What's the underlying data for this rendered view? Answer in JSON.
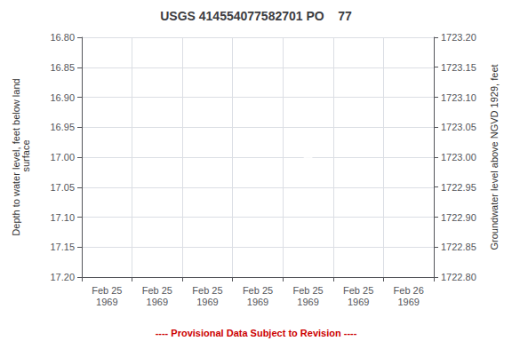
{
  "chart_data": {
    "type": "scatter",
    "title": "USGS 414554077582701 PO    77",
    "categories": [
      "Feb 25\n1969",
      "Feb 25\n1969",
      "Feb 25\n1969",
      "Feb 25\n1969",
      "Feb 25\n1969",
      "Feb 25\n1969",
      "Feb 26\n1969"
    ],
    "values": [
      null,
      null,
      null,
      null,
      17.0,
      null,
      null
    ],
    "color": "#0000cc",
    "marker": "open_circle",
    "ylabel": "Depth to water level, feet below land\n surface",
    "ylim": [
      17.2,
      16.8
    ],
    "yticks": [
      {
        "value": 16.8,
        "label": "16.80"
      },
      {
        "value": 16.85,
        "label": "16.85"
      },
      {
        "value": 16.9,
        "label": "16.90"
      },
      {
        "value": 16.95,
        "label": "16.95"
      },
      {
        "value": 17.0,
        "label": "17.00"
      },
      {
        "value": 17.05,
        "label": "17.05"
      },
      {
        "value": 17.1,
        "label": "17.10"
      },
      {
        "value": 17.15,
        "label": "17.15"
      },
      {
        "value": 17.2,
        "label": "17.20"
      }
    ],
    "y2label": "Groundwater level above NGVD 1929, feet",
    "y2lim": [
      1722.8,
      1723.2
    ],
    "y2ticks": [
      {
        "value": 1723.2,
        "label": "1723.20"
      },
      {
        "value": 1723.15,
        "label": "1723.15"
      },
      {
        "value": 1723.1,
        "label": "1723.10"
      },
      {
        "value": 1723.05,
        "label": "1723.05"
      },
      {
        "value": 1723.0,
        "label": "1723.00"
      },
      {
        "value": 1722.95,
        "label": "1722.95"
      },
      {
        "value": 1722.9,
        "label": "1722.90"
      },
      {
        "value": 1722.85,
        "label": "1722.85"
      },
      {
        "value": 1722.8,
        "label": "1722.80"
      }
    ],
    "grid": true,
    "annotations": [
      {
        "text": "---- Provisional Data Subject to Revision ----",
        "color": "#cc0000"
      }
    ]
  }
}
